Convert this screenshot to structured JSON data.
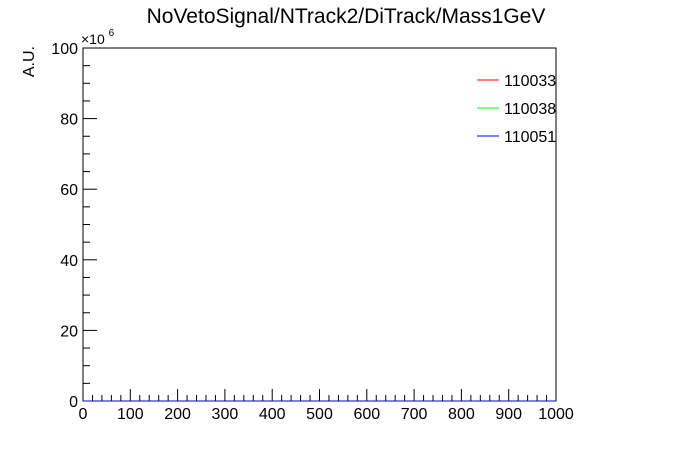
{
  "chart_data": {
    "type": "line",
    "title": "NoVetoSignal/NTrack2/DiTrack/Mass1GeV",
    "xlabel": "",
    "ylabel": "A.U.",
    "y_exponent_label": "×10",
    "y_exponent_power": "6",
    "xlim": [
      0,
      1000
    ],
    "ylim": [
      0,
      100
    ],
    "x_ticks": [
      0,
      100,
      200,
      300,
      400,
      500,
      600,
      700,
      800,
      900,
      1000
    ],
    "x_tick_labels": [
      "0",
      "100",
      "200",
      "300",
      "400",
      "500",
      "600",
      "700",
      "800",
      "900",
      "1000"
    ],
    "y_ticks": [
      0,
      20,
      40,
      60,
      80,
      100
    ],
    "y_tick_labels": [
      "0",
      "20",
      "40",
      "60",
      "80",
      "100"
    ],
    "grid": false,
    "legend_position": "top-right",
    "series": [
      {
        "name": "110033",
        "color": "#ff0000",
        "values": []
      },
      {
        "name": "110038",
        "color": "#00ff00",
        "values": []
      },
      {
        "name": "110051",
        "color": "#0000ff",
        "values": []
      }
    ]
  }
}
